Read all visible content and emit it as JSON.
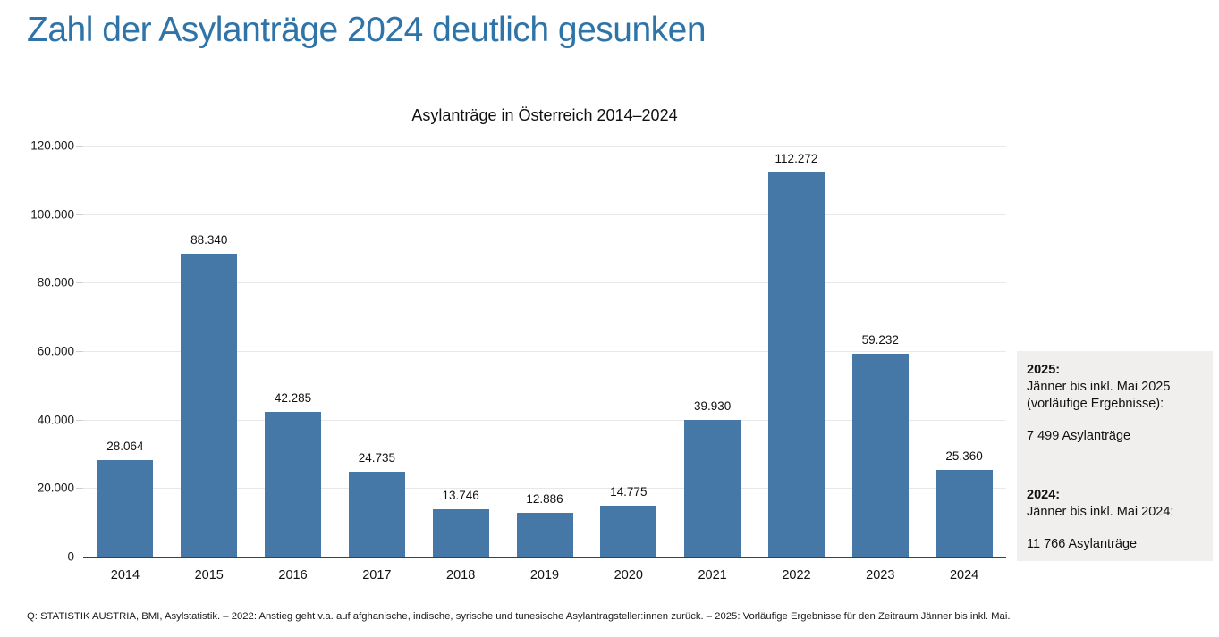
{
  "page": {
    "title": "Zahl der Asylanträge 2024 deutlich gesunken",
    "footnote": "Q: STATISTIK AUSTRIA, BMI, Asylstatistik. – 2022: Anstieg geht v.a. auf afghanische, indische, syrische und tunesische Asylantragsteller:innen zurück. – 2025: Vorläufige Ergebnisse für den Zeitraum Jänner bis inkl. Mai."
  },
  "chart_data": {
    "type": "bar",
    "title": "Asylanträge in Österreich 2014–2024",
    "categories": [
      "2014",
      "2015",
      "2016",
      "2017",
      "2018",
      "2019",
      "2020",
      "2021",
      "2022",
      "2023",
      "2024"
    ],
    "values": [
      28064,
      88340,
      42285,
      24735,
      13746,
      12886,
      14775,
      39930,
      112272,
      59232,
      25360
    ],
    "value_labels": [
      "28.064",
      "88.340",
      "42.285",
      "24.735",
      "13.746",
      "12.886",
      "14.775",
      "39.930",
      "112.272",
      "59.232",
      "25.360"
    ],
    "xlabel": "",
    "ylabel": "",
    "ylim": [
      0,
      120000
    ],
    "ytick_step": 20000,
    "ytick_labels": [
      "0",
      "20.000",
      "40.000",
      "60.000",
      "80.000",
      "100.000",
      "120.000"
    ],
    "grid": true,
    "legend": "none",
    "bar_color": "#4577A7"
  },
  "sidebar_note": {
    "sections": [
      {
        "heading": "2025:",
        "lines": [
          "Jänner bis inkl. Mai 2025",
          "(vorläufige Ergebnisse):"
        ],
        "value": "7 499 Asylanträge"
      },
      {
        "heading": "2024:",
        "lines": [
          "Jänner bis inkl. Mai 2024:"
        ],
        "value": "11 766 Asylanträge"
      }
    ]
  },
  "colors": {
    "title_blue": "#2E74A8",
    "bar_blue": "#4577A7",
    "note_background": "#f0efee",
    "gridline": "#e8e8e8",
    "axis_line": "#404040"
  }
}
